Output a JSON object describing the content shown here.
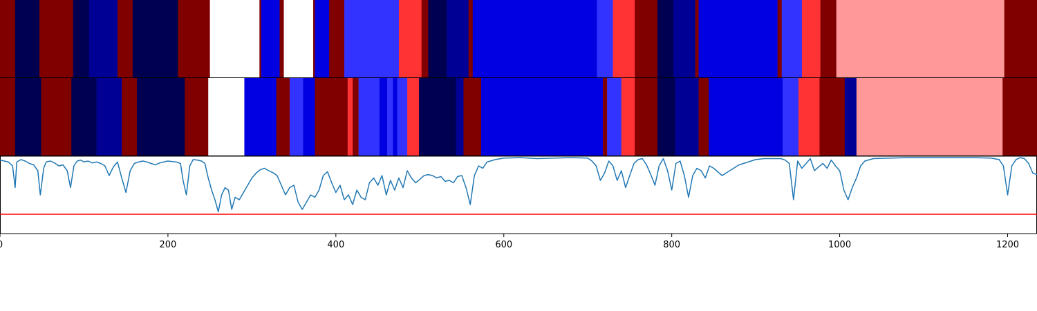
{
  "chart_data": [
    {
      "type": "heatmap",
      "panel": "top-strip",
      "x_range": [
        0,
        1235
      ],
      "palette": {
        "D": "#000050",
        "N": "#000094",
        "B": "#0000e0",
        "L": "#3333ff",
        "R": "#800000",
        "r": "#ff3333",
        "P": "#ff9999",
        "W": "#ffffff"
      },
      "segments": [
        {
          "start": 0,
          "end": 18,
          "color": "R"
        },
        {
          "start": 18,
          "end": 47,
          "color": "D"
        },
        {
          "start": 47,
          "end": 87,
          "color": "R"
        },
        {
          "start": 87,
          "end": 106,
          "color": "D"
        },
        {
          "start": 106,
          "end": 140,
          "color": "N"
        },
        {
          "start": 140,
          "end": 158,
          "color": "R"
        },
        {
          "start": 158,
          "end": 212,
          "color": "D"
        },
        {
          "start": 212,
          "end": 250,
          "color": "R"
        },
        {
          "start": 250,
          "end": 309,
          "color": "W"
        },
        {
          "start": 309,
          "end": 311,
          "color": "R"
        },
        {
          "start": 311,
          "end": 333,
          "color": "B"
        },
        {
          "start": 333,
          "end": 338,
          "color": "R"
        },
        {
          "start": 338,
          "end": 373,
          "color": "W"
        },
        {
          "start": 373,
          "end": 375,
          "color": "R"
        },
        {
          "start": 375,
          "end": 392,
          "color": "B"
        },
        {
          "start": 392,
          "end": 410,
          "color": "R"
        },
        {
          "start": 410,
          "end": 475,
          "color": "L"
        },
        {
          "start": 475,
          "end": 502,
          "color": "r"
        },
        {
          "start": 502,
          "end": 510,
          "color": "R"
        },
        {
          "start": 510,
          "end": 532,
          "color": "D"
        },
        {
          "start": 532,
          "end": 558,
          "color": "N"
        },
        {
          "start": 558,
          "end": 563,
          "color": "R"
        },
        {
          "start": 563,
          "end": 711,
          "color": "B"
        },
        {
          "start": 711,
          "end": 730,
          "color": "L"
        },
        {
          "start": 730,
          "end": 756,
          "color": "r"
        },
        {
          "start": 756,
          "end": 783,
          "color": "R"
        },
        {
          "start": 783,
          "end": 802,
          "color": "D"
        },
        {
          "start": 802,
          "end": 828,
          "color": "N"
        },
        {
          "start": 828,
          "end": 832,
          "color": "R"
        },
        {
          "start": 832,
          "end": 926,
          "color": "B"
        },
        {
          "start": 926,
          "end": 931,
          "color": "R"
        },
        {
          "start": 931,
          "end": 955,
          "color": "L"
        },
        {
          "start": 955,
          "end": 977,
          "color": "r"
        },
        {
          "start": 977,
          "end": 996,
          "color": "R"
        },
        {
          "start": 996,
          "end": 1196,
          "color": "P"
        },
        {
          "start": 1196,
          "end": 1235,
          "color": "R"
        }
      ]
    },
    {
      "type": "heatmap",
      "panel": "middle-strip",
      "x_range": [
        0,
        1235
      ],
      "segments": [
        {
          "start": 0,
          "end": 18,
          "color": "R"
        },
        {
          "start": 18,
          "end": 49,
          "color": "D"
        },
        {
          "start": 49,
          "end": 85,
          "color": "R"
        },
        {
          "start": 85,
          "end": 115,
          "color": "D"
        },
        {
          "start": 115,
          "end": 145,
          "color": "N"
        },
        {
          "start": 145,
          "end": 163,
          "color": "R"
        },
        {
          "start": 163,
          "end": 220,
          "color": "D"
        },
        {
          "start": 220,
          "end": 248,
          "color": "R"
        },
        {
          "start": 248,
          "end": 291,
          "color": "W"
        },
        {
          "start": 291,
          "end": 329,
          "color": "B"
        },
        {
          "start": 329,
          "end": 345,
          "color": "R"
        },
        {
          "start": 345,
          "end": 361,
          "color": "L"
        },
        {
          "start": 361,
          "end": 375,
          "color": "B"
        },
        {
          "start": 375,
          "end": 414,
          "color": "R"
        },
        {
          "start": 414,
          "end": 420,
          "color": "r"
        },
        {
          "start": 420,
          "end": 427,
          "color": "R"
        },
        {
          "start": 427,
          "end": 452,
          "color": "L"
        },
        {
          "start": 452,
          "end": 461,
          "color": "B"
        },
        {
          "start": 461,
          "end": 468,
          "color": "L"
        },
        {
          "start": 468,
          "end": 473,
          "color": "B"
        },
        {
          "start": 473,
          "end": 485,
          "color": "L"
        },
        {
          "start": 485,
          "end": 499,
          "color": "r"
        },
        {
          "start": 499,
          "end": 543,
          "color": "D"
        },
        {
          "start": 543,
          "end": 552,
          "color": "N"
        },
        {
          "start": 552,
          "end": 573,
          "color": "R"
        },
        {
          "start": 573,
          "end": 718,
          "color": "B"
        },
        {
          "start": 718,
          "end": 723,
          "color": "R"
        },
        {
          "start": 723,
          "end": 740,
          "color": "L"
        },
        {
          "start": 740,
          "end": 756,
          "color": "r"
        },
        {
          "start": 756,
          "end": 783,
          "color": "R"
        },
        {
          "start": 783,
          "end": 804,
          "color": "D"
        },
        {
          "start": 804,
          "end": 832,
          "color": "N"
        },
        {
          "start": 832,
          "end": 844,
          "color": "R"
        },
        {
          "start": 844,
          "end": 932,
          "color": "B"
        },
        {
          "start": 932,
          "end": 951,
          "color": "L"
        },
        {
          "start": 951,
          "end": 976,
          "color": "r"
        },
        {
          "start": 976,
          "end": 1006,
          "color": "R"
        },
        {
          "start": 1006,
          "end": 1020,
          "color": "N"
        },
        {
          "start": 1020,
          "end": 1194,
          "color": "P"
        },
        {
          "start": 1194,
          "end": 1235,
          "color": "R"
        }
      ]
    },
    {
      "type": "line",
      "panel": "bottom-plot",
      "xlim": [
        0,
        1235
      ],
      "ylim": [
        -0.6,
        1.0
      ],
      "xticks": [
        0,
        200,
        400,
        600,
        800,
        1000,
        1200
      ],
      "xtick_labels": [
        "0",
        "200",
        "400",
        "600",
        "800",
        "1000",
        "1200"
      ],
      "series": [
        {
          "color": "#1f77b4",
          "x": [
            0,
            5,
            10,
            15,
            18,
            20,
            25,
            30,
            35,
            40,
            45,
            48,
            52,
            55,
            60,
            65,
            70,
            75,
            80,
            84,
            88,
            92,
            96,
            100,
            105,
            110,
            115,
            120,
            125,
            130,
            135,
            140,
            145,
            150,
            155,
            160,
            165,
            170,
            175,
            180,
            185,
            190,
            195,
            200,
            205,
            210,
            215,
            218,
            222,
            226,
            230,
            235,
            240,
            244,
            248,
            252,
            256,
            260,
            264,
            268,
            272,
            276,
            280,
            285,
            290,
            295,
            300,
            305,
            310,
            315,
            320,
            325,
            330,
            335,
            340,
            345,
            350,
            355,
            360,
            365,
            370,
            375,
            380,
            385,
            390,
            395,
            400,
            405,
            410,
            415,
            420,
            425,
            430,
            435,
            440,
            445,
            450,
            455,
            460,
            465,
            470,
            475,
            480,
            485,
            490,
            495,
            500,
            505,
            510,
            515,
            520,
            525,
            530,
            535,
            540,
            545,
            550,
            555,
            560,
            565,
            570,
            575,
            580,
            590,
            600,
            620,
            640,
            660,
            680,
            700,
            705,
            710,
            715,
            720,
            725,
            730,
            735,
            740,
            745,
            750,
            755,
            760,
            765,
            770,
            775,
            780,
            785,
            790,
            795,
            800,
            805,
            810,
            815,
            820,
            825,
            830,
            835,
            840,
            845,
            850,
            860,
            880,
            900,
            910,
            920,
            925,
            930,
            935,
            940,
            945,
            950,
            955,
            960,
            965,
            970,
            975,
            980,
            985,
            990,
            995,
            1000,
            1002,
            1005,
            1010,
            1015,
            1020,
            1025,
            1030,
            1040,
            1060,
            1080,
            1100,
            1120,
            1140,
            1160,
            1180,
            1190,
            1195,
            1200,
            1205,
            1210,
            1215,
            1220,
            1225,
            1230,
            1235
          ],
          "y": [
            0.92,
            0.9,
            0.88,
            0.8,
            0.35,
            0.88,
            0.93,
            0.9,
            0.85,
            0.82,
            0.7,
            0.2,
            0.75,
            0.88,
            0.9,
            0.86,
            0.8,
            0.82,
            0.7,
            0.35,
            0.8,
            0.9,
            0.92,
            0.88,
            0.9,
            0.86,
            0.88,
            0.85,
            0.8,
            0.6,
            0.78,
            0.88,
            0.55,
            0.25,
            0.7,
            0.85,
            0.88,
            0.9,
            0.88,
            0.85,
            0.82,
            0.86,
            0.88,
            0.9,
            0.89,
            0.88,
            0.85,
            0.5,
            0.2,
            0.8,
            0.93,
            0.92,
            0.9,
            0.85,
            0.55,
            0.3,
            0.1,
            -0.15,
            0.2,
            0.35,
            0.3,
            -0.1,
            0.15,
            0.1,
            0.25,
            0.4,
            0.55,
            0.65,
            0.72,
            0.75,
            0.7,
            0.66,
            0.6,
            0.4,
            0.2,
            0.35,
            0.4,
            0.05,
            -0.1,
            0.05,
            0.2,
            0.15,
            0.3,
            0.6,
            0.68,
            0.45,
            0.25,
            0.4,
            0.1,
            0.2,
            0.0,
            0.3,
            0.15,
            0.1,
            0.45,
            0.55,
            0.4,
            0.6,
            0.2,
            0.5,
            0.3,
            0.55,
            0.35,
            0.7,
            0.55,
            0.45,
            0.52,
            0.6,
            0.62,
            0.6,
            0.55,
            0.58,
            0.48,
            0.5,
            0.45,
            0.58,
            0.6,
            0.35,
            0.0,
            0.6,
            0.8,
            0.75,
            0.88,
            0.93,
            0.96,
            0.97,
            0.95,
            0.96,
            0.97,
            0.96,
            0.9,
            0.8,
            0.5,
            0.65,
            0.9,
            0.8,
            0.5,
            0.7,
            0.35,
            0.6,
            0.85,
            0.93,
            0.95,
            0.82,
            0.62,
            0.4,
            0.8,
            0.95,
            0.7,
            0.3,
            0.85,
            0.9,
            0.6,
            0.15,
            0.6,
            0.75,
            0.7,
            0.55,
            0.8,
            0.75,
            0.6,
            0.82,
            0.93,
            0.95,
            0.95,
            0.95,
            0.95,
            0.92,
            0.85,
            0.1,
            0.9,
            0.75,
            0.85,
            0.95,
            0.7,
            0.78,
            0.85,
            0.75,
            0.92,
            0.8,
            0.7,
            0.55,
            0.3,
            0.1,
            0.35,
            0.55,
            0.8,
            0.9,
            0.95,
            0.96,
            0.97,
            0.97,
            0.97,
            0.97,
            0.97,
            0.96,
            0.93,
            0.8,
            0.2,
            0.8,
            0.93,
            0.97,
            0.95,
            0.85,
            0.65,
            0.62
          ]
        },
        {
          "type": "hline",
          "y": -0.2,
          "color": "#ff0000"
        }
      ]
    }
  ]
}
